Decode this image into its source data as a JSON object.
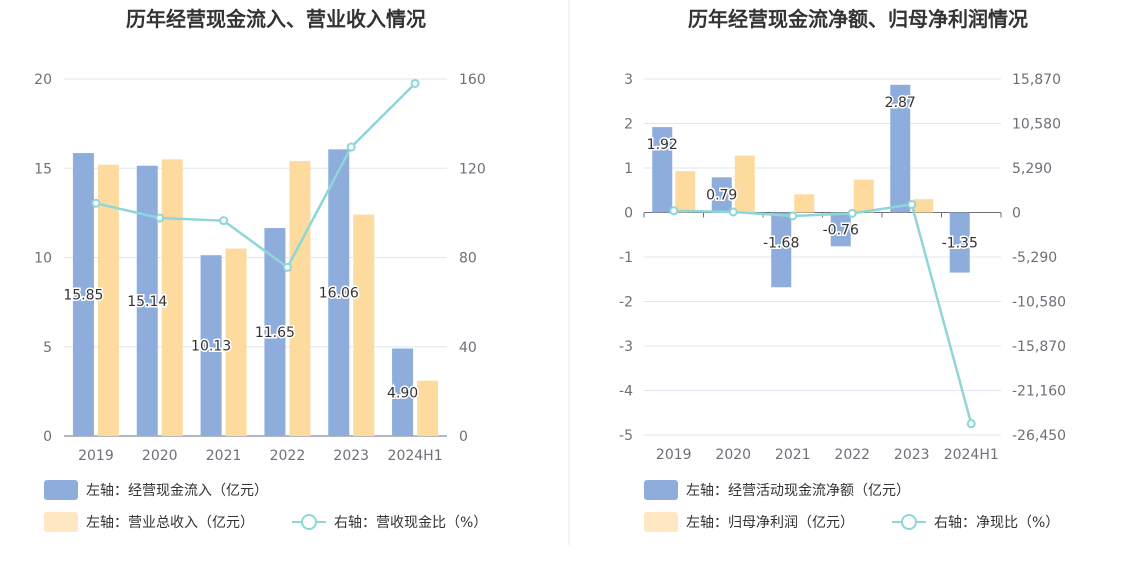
{
  "colors": {
    "bar1": "#8eaddc",
    "bar2": "#fddb9e",
    "line": "#8ed6d8",
    "axis": "#6e7079",
    "grid": "#e0e6f1",
    "divider": "#e8e8e8"
  },
  "chart_data": [
    {
      "type": "bar",
      "title": "历年经营现金流入、营业收入情况",
      "categories": [
        "2019",
        "2020",
        "2021",
        "2022",
        "2023",
        "2024H1"
      ],
      "left_axis": {
        "min": 0,
        "max": 20,
        "ticks": [
          "0",
          "5",
          "10",
          "15",
          "20"
        ]
      },
      "right_axis": {
        "min": 0,
        "max": 160,
        "ticks": [
          "0",
          "40",
          "80",
          "120",
          "160"
        ]
      },
      "series": [
        {
          "name": "左轴：经营现金流入（亿元）",
          "type": "bar",
          "axis": "left",
          "values": [
            15.85,
            15.14,
            10.13,
            11.65,
            16.06,
            4.9
          ],
          "labels": [
            "15.85",
            "15.14",
            "10.13",
            "11.65",
            "16.06",
            "4.90"
          ]
        },
        {
          "name": "左轴：营业总收入（亿元）",
          "type": "bar",
          "axis": "left",
          "values": [
            15.2,
            15.5,
            10.5,
            15.4,
            12.4,
            3.1
          ]
        },
        {
          "name": "右轴：营收现金比（%）",
          "type": "line",
          "axis": "right",
          "values": [
            104.3,
            97.7,
            96.5,
            75.6,
            129.5,
            158
          ]
        }
      ]
    },
    {
      "type": "bar",
      "title": "历年经营现金流净额、归母净利润情况",
      "categories": [
        "2019",
        "2020",
        "2021",
        "2022",
        "2023",
        "2024H1"
      ],
      "left_axis": {
        "min": -5,
        "max": 3,
        "ticks": [
          "-5",
          "-4",
          "-3",
          "-2",
          "-1",
          "0",
          "1",
          "2",
          "3"
        ]
      },
      "right_axis": {
        "min": -26450,
        "max": 15870,
        "ticks": [
          "-26,450",
          "-21,160",
          "-15,870",
          "-10,580",
          "-5,290",
          "0",
          "5,290",
          "10,580",
          "15,870"
        ]
      },
      "series": [
        {
          "name": "左轴：经营活动现金流净额（亿元）",
          "type": "bar",
          "axis": "left",
          "values": [
            1.92,
            0.79,
            -1.68,
            -0.76,
            2.87,
            -1.35
          ],
          "labels": [
            "1.92",
            "0.79",
            "-1.68",
            "-0.76",
            "2.87",
            "-1.35"
          ]
        },
        {
          "name": "左轴：归母净利润（亿元）",
          "type": "bar",
          "axis": "left",
          "values": [
            0.93,
            1.28,
            0.41,
            0.74,
            0.3,
            0.0
          ]
        },
        {
          "name": "右轴：净现比（%）",
          "type": "line",
          "axis": "right",
          "values": [
            207,
            62,
            -410,
            -103,
            957,
            -25100
          ]
        }
      ]
    }
  ]
}
